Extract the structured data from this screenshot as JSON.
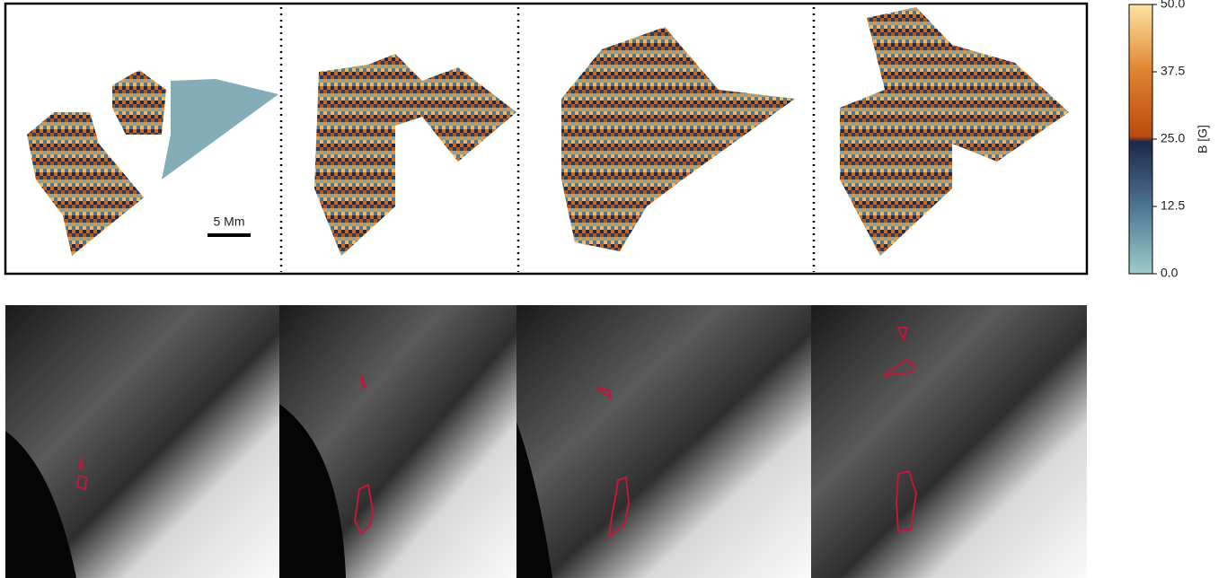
{
  "chart_data": {
    "type": "heatmap",
    "colorbar_label": "B [G]",
    "clim": [
      0,
      50
    ],
    "cticks": [
      {
        "value": 0,
        "label": "0.0"
      },
      {
        "value": 12.5,
        "label": "12.5"
      },
      {
        "value": 25,
        "label": "25.0"
      },
      {
        "value": 37.5,
        "label": "37.5"
      },
      {
        "value": 50,
        "label": "50.0"
      }
    ],
    "scale_bar": "5 Mm"
  }
}
